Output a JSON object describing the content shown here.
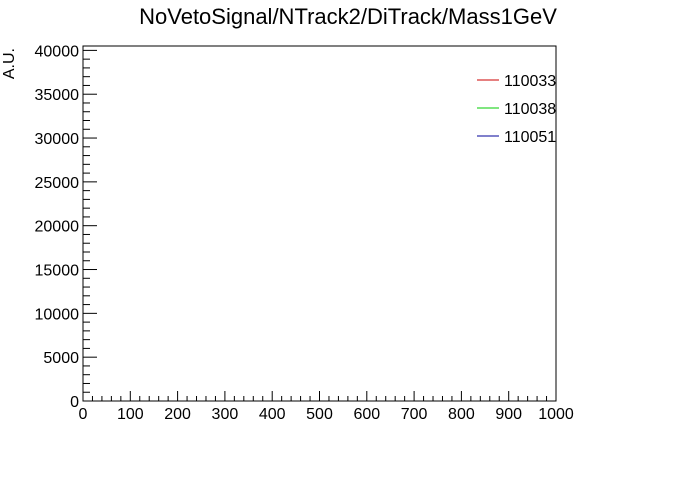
{
  "chart_data": {
    "type": "line",
    "title": "NoVetoSignal/NTrack2/DiTrack/Mass1GeV",
    "xlabel": "",
    "ylabel": "A.U.",
    "xlim": [
      0,
      1000
    ],
    "ylim": [
      0,
      40500
    ],
    "x_ticks": [
      0,
      100,
      200,
      300,
      400,
      500,
      600,
      700,
      800,
      900,
      1000
    ],
    "x_tick_labels": [
      "0",
      "100",
      "200",
      "300",
      "400",
      "500",
      "600",
      "700",
      "800",
      "900",
      "1000"
    ],
    "y_ticks": [
      0,
      5000,
      10000,
      15000,
      20000,
      25000,
      30000,
      35000,
      40000
    ],
    "y_tick_labels": [
      "0",
      "5000",
      "10000",
      "15000",
      "20000",
      "25000",
      "30000",
      "35000",
      "40000"
    ],
    "grid": false,
    "legend_position": "top-right",
    "series": [
      {
        "name": "110033",
        "color": "#cc0000",
        "values": []
      },
      {
        "name": "110038",
        "color": "#00cc00",
        "values": []
      },
      {
        "name": "110051",
        "color": "#000099",
        "values": []
      }
    ]
  }
}
